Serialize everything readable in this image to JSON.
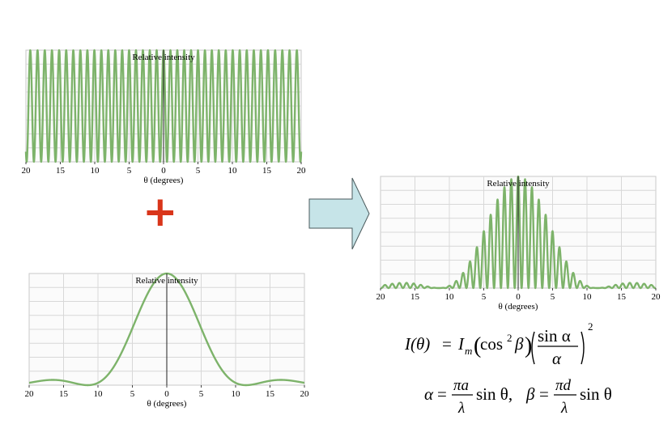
{
  "chart_data": [
    {
      "type": "line",
      "title": "Relative intensity",
      "xlabel": "θ (degrees)",
      "ylabel": "Relative intensity",
      "xlim": [
        -20,
        20
      ],
      "ylim": [
        0,
        1
      ],
      "grid": true,
      "x_tick_labels": [
        "20",
        "15",
        "10",
        "5",
        "0",
        "5",
        "10",
        "15",
        "20"
      ],
      "series": [
        {
          "function": "cos^2(beta)",
          "description_values": {
            "fringe_spacing_deg": 1.0,
            "peak": 1.0
          }
        }
      ]
    },
    {
      "type": "line",
      "title": "Relative intensity",
      "xlabel": "θ (degrees)",
      "ylabel": "Relative intensity",
      "xlim": [
        -20,
        20
      ],
      "ylim": [
        0,
        1
      ],
      "grid": true,
      "x_tick_labels": [
        "20",
        "15",
        "10",
        "5",
        "0",
        "5",
        "10",
        "15",
        "20"
      ],
      "series": [
        {
          "function": "(sin(alpha)/alpha)^2",
          "description_values": {
            "first_minimum_deg": 11.5,
            "peak": 1.0
          }
        }
      ]
    },
    {
      "type": "line",
      "title": "Relative intensity",
      "xlabel": "θ (degrees)",
      "ylabel": "Relative intensity",
      "xlim": [
        -20,
        20
      ],
      "ylim": [
        0,
        1
      ],
      "grid": true,
      "x_tick_labels": [
        "20",
        "15",
        "10",
        "5",
        "0",
        "5",
        "10",
        "15",
        "20"
      ],
      "series": [
        {
          "function": "cos^2(beta) * (sin(alpha)/alpha)^2",
          "description_values": {
            "fringe_spacing_deg": 1.0,
            "first_envelope_minimum_deg": 11.5,
            "peak": 1.0
          }
        }
      ]
    }
  ],
  "plus_sign": "+",
  "colors": {
    "curve": "#7db36a",
    "plus": "#d9351a",
    "arrow_fill": "#c6e4e8",
    "grid": "#d8d8d8"
  },
  "formula": {
    "line1": "I(θ) = I_m (cos² β)( sin α / α )²",
    "line2": "α = πa/λ sin θ,  β = πd/λ sin θ",
    "I_theta": "I(θ)",
    "eq": "=",
    "Im": "I",
    "m": "m",
    "cos": "cos",
    "two": "2",
    "beta": "β",
    "sin_alpha": "sin α",
    "alpha": "α",
    "sq": "2",
    "alpha2": "α",
    "pia": "πa",
    "lambda": "λ",
    "sin_theta": "sin θ,",
    "beta2": "β",
    "pid": "πd",
    "sin_theta2": "sin θ"
  }
}
